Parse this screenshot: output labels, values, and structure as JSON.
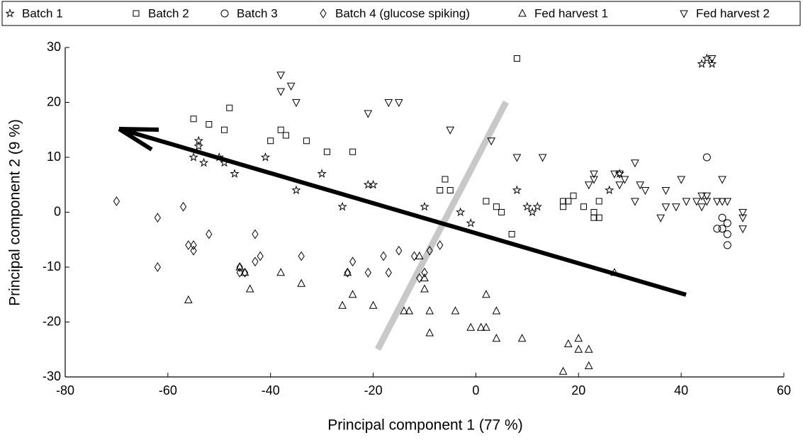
{
  "chart_data": {
    "type": "scatter",
    "x_label": "Principal component 1 (77 %)",
    "y_label": "Principal component 2 (9 %)",
    "xlim": [
      -80,
      60
    ],
    "xticks": [
      -80,
      -60,
      -40,
      -20,
      0,
      20,
      40,
      60
    ],
    "ylim": [
      -30,
      30
    ],
    "yticks": [
      -30,
      -20,
      -10,
      0,
      10,
      20,
      30
    ],
    "grid": false,
    "legend": "top",
    "series": [
      {
        "name": "Batch 1",
        "marker": "star",
        "color": "#000000",
        "x": [
          -55,
          -54,
          -54,
          -53,
          -50,
          -49,
          -47,
          -41,
          -35,
          -30,
          -26,
          -21,
          -20,
          -10,
          -3,
          -1,
          8,
          10,
          11,
          12,
          26,
          28,
          44,
          45,
          46
        ],
        "values": [
          10,
          13,
          12,
          9,
          10,
          9,
          7,
          10,
          4,
          7,
          1,
          5,
          5,
          1,
          0,
          -2,
          4,
          1,
          0,
          1,
          4,
          7,
          27,
          28,
          27
        ]
      },
      {
        "name": "Batch 2",
        "marker": "square",
        "color": "#000000",
        "x": [
          -55,
          -52,
          -49,
          -48,
          -40,
          -38,
          -37,
          -33,
          -29,
          -24,
          -7,
          -6,
          -5,
          2,
          4,
          5,
          7,
          8,
          17,
          17,
          18,
          19,
          21,
          23,
          24,
          23,
          24
        ],
        "values": [
          17,
          16,
          15,
          19,
          13,
          15,
          14,
          13,
          11,
          11,
          4,
          6,
          4,
          2,
          1,
          0,
          -4,
          28,
          2,
          1,
          2,
          3,
          1,
          -1,
          -1,
          0,
          2
        ]
      },
      {
        "name": "Batch 3",
        "marker": "circle",
        "color": "#000000",
        "x": [
          45,
          47,
          48,
          48,
          49,
          49,
          49
        ],
        "values": [
          10,
          -3,
          -1,
          -3,
          -2,
          -4,
          -6
        ]
      },
      {
        "name": "Batch 4 (glucose spiking)",
        "marker": "diamond",
        "color": "#000000",
        "x": [
          -70,
          -62,
          -62,
          -57,
          -56,
          -55,
          -55,
          -52,
          -46,
          -46,
          -45,
          -43,
          -43,
          -42,
          -34,
          -25,
          -24,
          -21,
          -18,
          -17,
          -15,
          -12,
          -11,
          -10,
          -9,
          -7
        ],
        "values": [
          2,
          -1,
          -10,
          1,
          -6,
          -6,
          -7,
          -4,
          -10,
          -11,
          -11,
          -4,
          -9,
          -8,
          -8,
          -11,
          -9,
          -11,
          -8,
          -11,
          -7,
          -8,
          -12,
          -11,
          -7,
          -6
        ]
      },
      {
        "name": "Fed harvest 1",
        "marker": "triangle-up",
        "color": "#000000",
        "x": [
          -56,
          -46,
          -45,
          -44,
          -38,
          -34,
          -26,
          -25,
          -24,
          -20,
          -14,
          -13,
          -11,
          -10,
          -10,
          -9,
          -9,
          -4,
          -1,
          2,
          2,
          1,
          4,
          4,
          9,
          17,
          18,
          20,
          20,
          22,
          22,
          27
        ],
        "values": [
          -16,
          -10,
          -11,
          -14,
          -11,
          -13,
          -17,
          -11,
          -15,
          -17,
          -18,
          -18,
          -8,
          -12,
          -14,
          -18,
          -22,
          -18,
          -21,
          -15,
          -21,
          -21,
          -18,
          -23,
          -23,
          -29,
          -24,
          -23,
          -25,
          -25,
          -28,
          -11
        ]
      },
      {
        "name": "Fed harvest 2",
        "marker": "triangle-down",
        "color": "#000000",
        "x": [
          -38,
          -36,
          -38,
          -35,
          -21,
          -17,
          -15,
          -5,
          3,
          8,
          13,
          22,
          23,
          23,
          27,
          28,
          28,
          29,
          31,
          31,
          32,
          33,
          36,
          37,
          37,
          39,
          40,
          41,
          43,
          44,
          44,
          45,
          45,
          46,
          47,
          48,
          48,
          49,
          52,
          52,
          52
        ],
        "values": [
          25,
          23,
          22,
          20,
          18,
          20,
          20,
          15,
          13,
          10,
          10,
          5,
          6,
          7,
          7,
          5,
          7,
          6,
          9,
          2,
          5,
          4,
          -1,
          4,
          1,
          1,
          6,
          2,
          2,
          1,
          3,
          3,
          2,
          28,
          2,
          6,
          2,
          2,
          0,
          -1,
          -3
        ]
      }
    ]
  }
}
